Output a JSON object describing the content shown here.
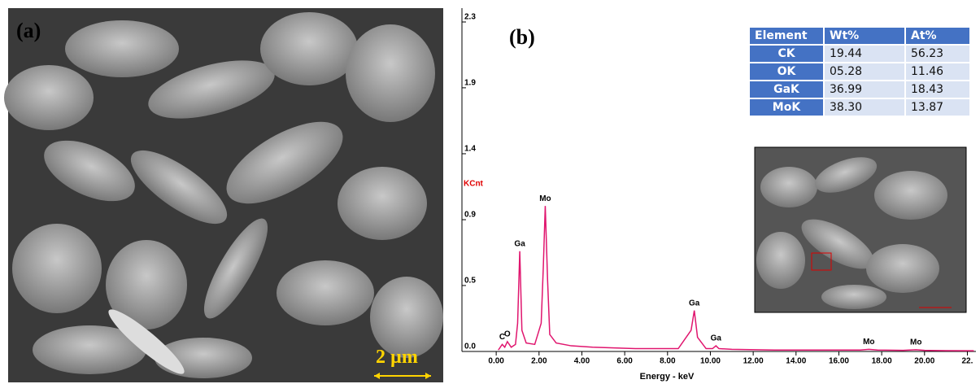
{
  "panel_a": {
    "label": "(a)",
    "scale_bar": "2 µm"
  },
  "chart_data": {
    "type": "line",
    "panel_label": "(b)",
    "ylabel": "KCnt",
    "xlabel": "Energy - keV",
    "color": "#e0156e",
    "x": [
      0.1,
      0.28,
      0.4,
      0.52,
      0.7,
      0.9,
      1.0,
      1.1,
      1.2,
      1.4,
      1.8,
      2.1,
      2.2,
      2.29,
      2.4,
      2.5,
      2.8,
      3.5,
      4.5,
      5.5,
      6.5,
      7.5,
      8.5,
      9.1,
      9.25,
      9.4,
      9.8,
      10.1,
      10.26,
      10.4,
      11,
      13,
      15,
      17,
      17.4,
      17.8,
      19,
      19.6,
      20,
      21,
      22.3
    ],
    "values": [
      0.01,
      0.05,
      0.03,
      0.07,
      0.03,
      0.05,
      0.2,
      0.71,
      0.15,
      0.06,
      0.05,
      0.2,
      0.6,
      1.03,
      0.5,
      0.12,
      0.06,
      0.04,
      0.03,
      0.025,
      0.02,
      0.02,
      0.02,
      0.15,
      0.29,
      0.1,
      0.02,
      0.02,
      0.04,
      0.02,
      0.015,
      0.01,
      0.01,
      0.01,
      0.015,
      0.01,
      0.008,
      0.012,
      0.008,
      0.006,
      0.005
    ],
    "peak_labels": [
      {
        "text": "C",
        "x": 0.28,
        "y": 0.05
      },
      {
        "text": "O",
        "x": 0.52,
        "y": 0.07
      },
      {
        "text": "Ga",
        "x": 1.1,
        "y": 0.71
      },
      {
        "text": "Mo",
        "x": 2.29,
        "y": 1.03
      },
      {
        "text": "Ga",
        "x": 9.25,
        "y": 0.29
      },
      {
        "text": "Ga",
        "x": 10.26,
        "y": 0.04
      },
      {
        "text": "Mo",
        "x": 17.4,
        "y": 0.015
      },
      {
        "text": "Mo",
        "x": 19.6,
        "y": 0.012
      }
    ],
    "xlim": [
      -1.6,
      22.4
    ],
    "ylim": [
      0,
      2.333
    ],
    "xticks": [
      {
        "value": 0,
        "label": "0.00"
      },
      {
        "value": 2,
        "label": "2.00"
      },
      {
        "value": 4,
        "label": "4.00"
      },
      {
        "value": 6,
        "label": "6.00"
      },
      {
        "value": 8,
        "label": "8.00"
      },
      {
        "value": 10,
        "label": "10.00"
      },
      {
        "value": 12,
        "label": "12.00"
      },
      {
        "value": 14,
        "label": "14.00"
      },
      {
        "value": 16,
        "label": "16.00"
      },
      {
        "value": 18,
        "label": "18.00"
      },
      {
        "value": 20,
        "label": "20.00"
      },
      {
        "value": 22,
        "label": "22."
      }
    ],
    "yticks": [
      {
        "value": 0,
        "label": "0.0"
      },
      {
        "value": 0.467,
        "label": "0.5"
      },
      {
        "value": 0.933,
        "label": "0.9"
      },
      {
        "value": 1.4,
        "label": "1.4"
      },
      {
        "value": 1.867,
        "label": "1.9"
      },
      {
        "value": 2.333,
        "label": "2.3"
      }
    ]
  },
  "table": {
    "columns": [
      "Element",
      "Wt%",
      "At%"
    ],
    "rows": [
      [
        "CK",
        "19.44",
        "56.23"
      ],
      [
        "OK",
        "05.28",
        "11.46"
      ],
      [
        "GaK",
        "36.99",
        "18.43"
      ],
      [
        "MoK",
        "38.30",
        "13.87"
      ]
    ]
  }
}
